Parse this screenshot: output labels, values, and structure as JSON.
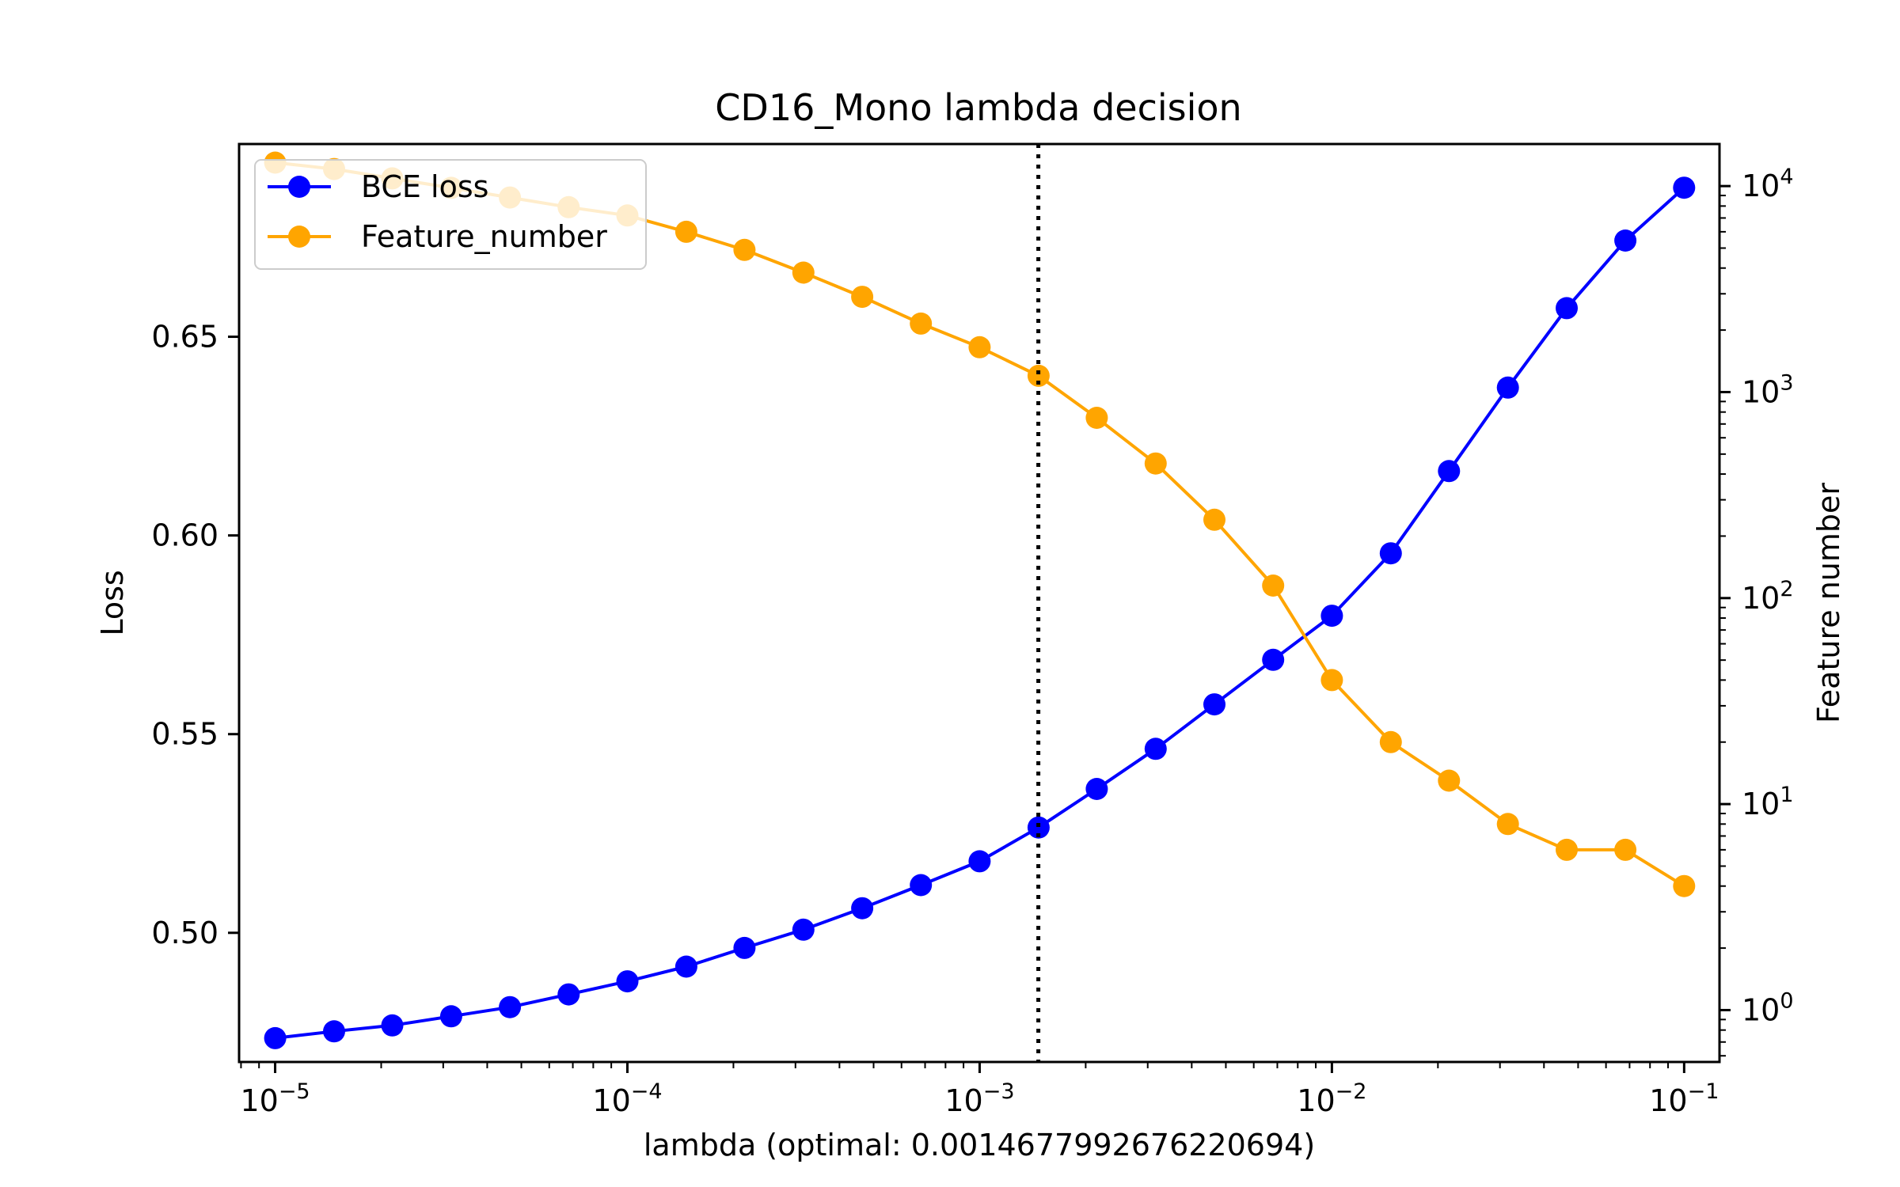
{
  "chart_data": {
    "type": "line",
    "title": "CD16_Mono lambda decision",
    "xlabel": "lambda (optimal: 0.0014677992676220694)",
    "ylabel": "Loss",
    "y2label": "Feature number",
    "xscale": "log",
    "y2scale": "log",
    "xlim": [
      7.9e-06,
      0.126
    ],
    "ylim": [
      0.4675,
      0.6985
    ],
    "y2lim": [
      0.56,
      16000
    ],
    "x_ticks": [
      {
        "value": 1e-05,
        "base": "10",
        "exp": "−5"
      },
      {
        "value": 0.0001,
        "base": "10",
        "exp": "−4"
      },
      {
        "value": 0.001,
        "base": "10",
        "exp": "−3"
      },
      {
        "value": 0.01,
        "base": "10",
        "exp": "−2"
      },
      {
        "value": 0.1,
        "base": "10",
        "exp": "−1"
      }
    ],
    "y_ticks": [
      "0.50",
      "0.55",
      "0.60",
      "0.65"
    ],
    "y2_ticks": [
      {
        "value": 1,
        "base": "10",
        "exp": "0"
      },
      {
        "value": 10,
        "base": "10",
        "exp": "1"
      },
      {
        "value": 100,
        "base": "10",
        "exp": "2"
      },
      {
        "value": 1000,
        "base": "10",
        "exp": "3"
      },
      {
        "value": 10000,
        "base": "10",
        "exp": "4"
      }
    ],
    "optimal_lambda": 0.0014677992676220694,
    "legend_position": "upper-left",
    "x": [
      1e-05,
      1.47e-05,
      2.15e-05,
      3.16e-05,
      4.64e-05,
      6.81e-05,
      0.0001,
      0.000147,
      0.000215,
      0.000316,
      0.000464,
      0.000681,
      0.001,
      0.00147,
      0.00215,
      0.00316,
      0.00464,
      0.00681,
      0.01,
      0.0147,
      0.0215,
      0.0316,
      0.0464,
      0.0681,
      0.1
    ],
    "series": [
      {
        "name": "BCE loss",
        "axis": "left",
        "color": "#0000ff",
        "values": [
          0.4735,
          0.4752,
          0.4767,
          0.479,
          0.4813,
          0.4845,
          0.4878,
          0.4915,
          0.4962,
          0.5008,
          0.5062,
          0.512,
          0.518,
          0.5265,
          0.5362,
          0.5463,
          0.5575,
          0.5687,
          0.5798,
          0.5955,
          0.6162,
          0.6372,
          0.6572,
          0.6742,
          0.6875
        ]
      },
      {
        "name": "Feature_number",
        "axis": "right",
        "color": "#ffa500",
        "values": [
          13000,
          12100,
          10900,
          9800,
          8800,
          7900,
          7200,
          6000,
          4900,
          3800,
          2900,
          2150,
          1650,
          1200,
          750,
          450,
          240,
          115,
          40,
          20,
          13,
          8,
          6,
          6,
          4
        ]
      }
    ]
  }
}
